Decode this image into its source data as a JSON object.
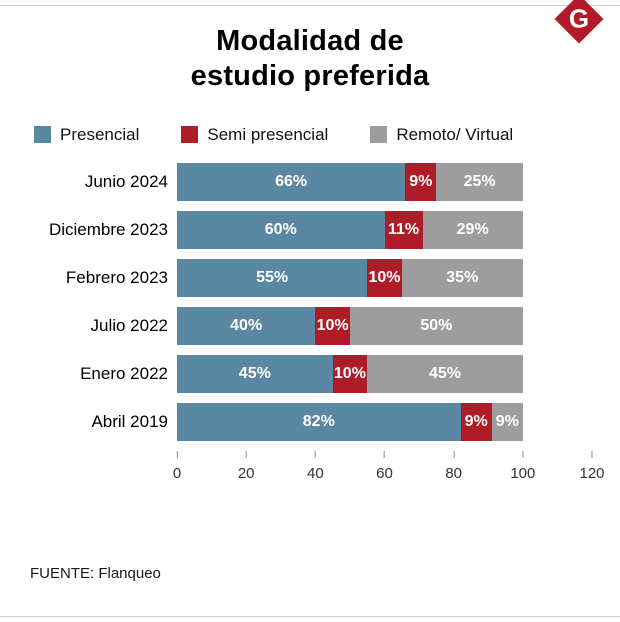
{
  "title": {
    "line1": "Modalidad de",
    "line2": "estudio preferida"
  },
  "logo": {
    "letter": "G",
    "color": "#b11a29"
  },
  "legend": [
    {
      "label": "Presencial",
      "color": "#5a87a1"
    },
    {
      "label": "Semi presencial",
      "color": "#ae1c28"
    },
    {
      "label": "Remoto/ Virtual",
      "color": "#9d9d9d"
    }
  ],
  "source": "FUENTE: Flanqueo",
  "chart_data": {
    "type": "bar",
    "orientation": "horizontal",
    "stacked": true,
    "title": "Modalidad de estudio preferida",
    "categories": [
      "Junio 2024",
      "Diciembre 2023",
      "Febrero 2023",
      "Julio 2022",
      "Enero 2022",
      "Abril 2019"
    ],
    "series": [
      {
        "name": "Presencial",
        "color": "#5a87a1",
        "values": [
          66,
          60,
          55,
          40,
          45,
          82
        ]
      },
      {
        "name": "Semi presencial",
        "color": "#ae1c28",
        "values": [
          9,
          11,
          10,
          10,
          10,
          9
        ]
      },
      {
        "name": "Remoto/ Virtual",
        "color": "#9d9d9d",
        "values": [
          25,
          29,
          35,
          50,
          45,
          9
        ]
      }
    ],
    "value_suffix": "%",
    "x_ticks": [
      0,
      20,
      40,
      60,
      80,
      100,
      120
    ],
    "xlim": [
      0,
      120
    ],
    "grid": false,
    "legend_position": "top"
  }
}
